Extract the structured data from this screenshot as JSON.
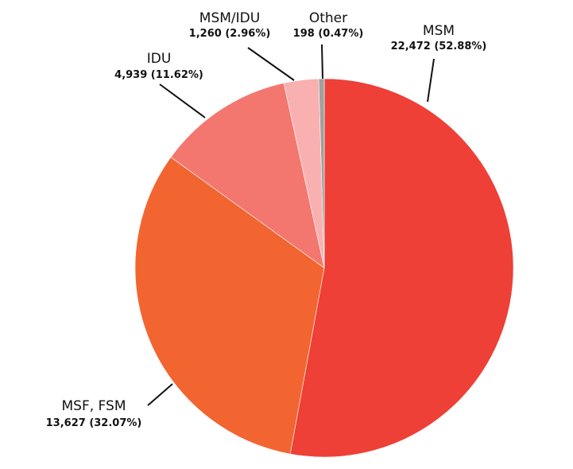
{
  "chart_data": {
    "type": "pie",
    "slices": [
      {
        "label": "MSM",
        "value": 22472,
        "value_text": "22,472 (52.88%)",
        "percent": 52.88,
        "color": "#ee4036"
      },
      {
        "label": "MSF, FSM",
        "value": 13627,
        "value_text": "13,627 (32.07%)",
        "percent": 32.07,
        "color": "#f26531"
      },
      {
        "label": "IDU",
        "value": 4939,
        "value_text": "4,939 (11.62%)",
        "percent": 11.62,
        "color": "#f3776e"
      },
      {
        "label": "MSM/IDU",
        "value": 1260,
        "value_text": "1,260 (2.96%)",
        "percent": 2.96,
        "color": "#f9b0b1"
      },
      {
        "label": "Other",
        "value": 198,
        "value_text": "198 (0.47%)",
        "percent": 0.47,
        "color": "#a0a0a0"
      }
    ],
    "start": "12 o'clock",
    "direction": "clockwise",
    "legend": "none"
  }
}
